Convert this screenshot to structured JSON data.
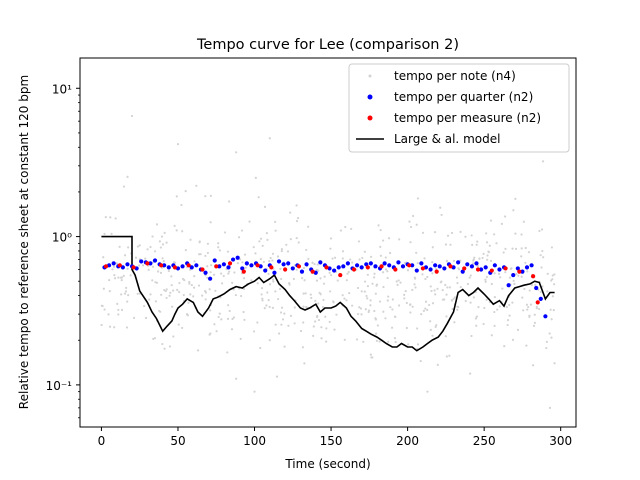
{
  "chart_data": {
    "type": "scatter",
    "title": "Tempo curve for Lee (comparison 2)",
    "xlabel": "Time (second)",
    "ylabel": "Relative tempo to reference sheet at constant 120 bpm",
    "xlim": [
      -14,
      310
    ],
    "ylim": [
      0.052,
      16
    ],
    "yscale": "log",
    "xticks": [
      0,
      50,
      100,
      150,
      200,
      250,
      300
    ],
    "xtick_labels": [
      "0",
      "50",
      "100",
      "150",
      "200",
      "250",
      "300"
    ],
    "yticks": [
      0.1,
      1,
      10
    ],
    "ytick_labels": [
      "10⁻¹",
      "10⁰",
      "10¹"
    ],
    "grid": false,
    "legend_position": "top-right",
    "series": [
      {
        "name": "tempo per note (n4)",
        "kind": "scatter",
        "color": "#d3d3d3",
        "generated": {
          "x_start": 0,
          "x_end": 296,
          "count": 700,
          "seed": 7
        },
        "x": [
          20,
          50,
          110,
          88,
          62,
          100,
          213,
          293,
          296,
          228,
          88,
          176,
          184
        ],
        "y": [
          6.5,
          4.2,
          4.6,
          3.7,
          2.2,
          0.09,
          0.09,
          0.07,
          0.14,
          0.88,
          0.11,
          0.16,
          0.94
        ]
      },
      {
        "name": "tempo per quarter (n2)",
        "kind": "scatter",
        "color": "#0000ff",
        "x": [
          2,
          5,
          8,
          11,
          14,
          17,
          20,
          23,
          26,
          29,
          32,
          35,
          38,
          41,
          44,
          47,
          50,
          53,
          56,
          59,
          62,
          65,
          68,
          71,
          74,
          77,
          80,
          83,
          86,
          89,
          92,
          95,
          98,
          101,
          104,
          107,
          110,
          113,
          116,
          119,
          122,
          125,
          128,
          131,
          134,
          137,
          140,
          143,
          146,
          149,
          152,
          155,
          158,
          161,
          164,
          167,
          170,
          173,
          176,
          179,
          182,
          185,
          188,
          191,
          194,
          197,
          200,
          203,
          206,
          209,
          212,
          215,
          218,
          221,
          224,
          227,
          230,
          233,
          236,
          239,
          242,
          245,
          248,
          251,
          254,
          257,
          260,
          263,
          266,
          269,
          272,
          275,
          278,
          281,
          284,
          287,
          290
        ],
        "y": [
          0.62,
          0.64,
          0.66,
          0.63,
          0.62,
          0.65,
          0.63,
          0.61,
          0.68,
          0.67,
          0.66,
          0.69,
          0.65,
          0.64,
          0.62,
          0.64,
          0.61,
          0.63,
          0.66,
          0.62,
          0.64,
          0.6,
          0.57,
          0.52,
          0.69,
          0.63,
          0.65,
          0.62,
          0.7,
          0.72,
          0.61,
          0.66,
          0.64,
          0.66,
          0.63,
          0.59,
          0.64,
          0.57,
          0.68,
          0.65,
          0.66,
          0.61,
          0.64,
          0.58,
          0.65,
          0.6,
          0.57,
          0.67,
          0.64,
          0.61,
          0.59,
          0.62,
          0.63,
          0.66,
          0.61,
          0.64,
          0.62,
          0.65,
          0.66,
          0.63,
          0.61,
          0.66,
          0.64,
          0.62,
          0.67,
          0.63,
          0.65,
          0.64,
          0.59,
          0.66,
          0.62,
          0.6,
          0.64,
          0.63,
          0.61,
          0.65,
          0.62,
          0.67,
          0.58,
          0.65,
          0.63,
          0.66,
          0.6,
          0.62,
          0.57,
          0.64,
          0.6,
          0.62,
          0.47,
          0.55,
          0.61,
          0.58,
          0.62,
          0.64,
          0.45,
          0.38,
          0.29
        ]
      },
      {
        "name": "tempo per measure (n2)",
        "kind": "scatter",
        "color": "#ff0000",
        "x": [
          3,
          12,
          21,
          30,
          39,
          48,
          57,
          66,
          75,
          84,
          93,
          102,
          111,
          120,
          129,
          138,
          147,
          156,
          165,
          174,
          183,
          192,
          201,
          210,
          219,
          228,
          237,
          246,
          255,
          264,
          273,
          282,
          285
        ],
        "y": [
          0.63,
          0.64,
          0.62,
          0.66,
          0.64,
          0.62,
          0.64,
          0.6,
          0.63,
          0.66,
          0.58,
          0.64,
          0.62,
          0.6,
          0.63,
          0.58,
          0.62,
          0.55,
          0.6,
          0.62,
          0.63,
          0.6,
          0.64,
          0.61,
          0.58,
          0.63,
          0.61,
          0.6,
          0.59,
          0.61,
          0.58,
          0.54,
          0.36
        ]
      },
      {
        "name": "Large & al. model",
        "kind": "line",
        "color": "#000000",
        "x": [
          0,
          20,
          20,
          22,
          25,
          30,
          33,
          36,
          40,
          43,
          46,
          48,
          50,
          53,
          56,
          60,
          63,
          66,
          70,
          73,
          76,
          80,
          84,
          88,
          92,
          96,
          100,
          103,
          106,
          110,
          113,
          116,
          120,
          123,
          126,
          130,
          133,
          136,
          140,
          143,
          146,
          150,
          153,
          156,
          160,
          163,
          166,
          170,
          173,
          176,
          180,
          183,
          186,
          190,
          193,
          196,
          200,
          203,
          206,
          210,
          213,
          216,
          220,
          223,
          226,
          230,
          233,
          236,
          240,
          243,
          246,
          250,
          253,
          256,
          260,
          263,
          266,
          270,
          273,
          276,
          280,
          283,
          286,
          290,
          293,
          296
        ],
        "y": [
          1.0,
          1.0,
          0.6,
          0.55,
          0.43,
          0.36,
          0.31,
          0.28,
          0.23,
          0.25,
          0.27,
          0.3,
          0.33,
          0.35,
          0.38,
          0.36,
          0.31,
          0.29,
          0.33,
          0.38,
          0.39,
          0.41,
          0.44,
          0.46,
          0.45,
          0.48,
          0.5,
          0.53,
          0.49,
          0.52,
          0.55,
          0.48,
          0.44,
          0.4,
          0.37,
          0.33,
          0.32,
          0.33,
          0.35,
          0.31,
          0.33,
          0.33,
          0.34,
          0.36,
          0.33,
          0.29,
          0.27,
          0.24,
          0.23,
          0.22,
          0.21,
          0.2,
          0.19,
          0.18,
          0.18,
          0.19,
          0.18,
          0.18,
          0.17,
          0.18,
          0.19,
          0.2,
          0.21,
          0.23,
          0.26,
          0.31,
          0.42,
          0.44,
          0.4,
          0.42,
          0.45,
          0.41,
          0.38,
          0.35,
          0.37,
          0.34,
          0.4,
          0.45,
          0.46,
          0.47,
          0.48,
          0.5,
          0.49,
          0.38,
          0.42,
          0.42
        ]
      }
    ]
  }
}
